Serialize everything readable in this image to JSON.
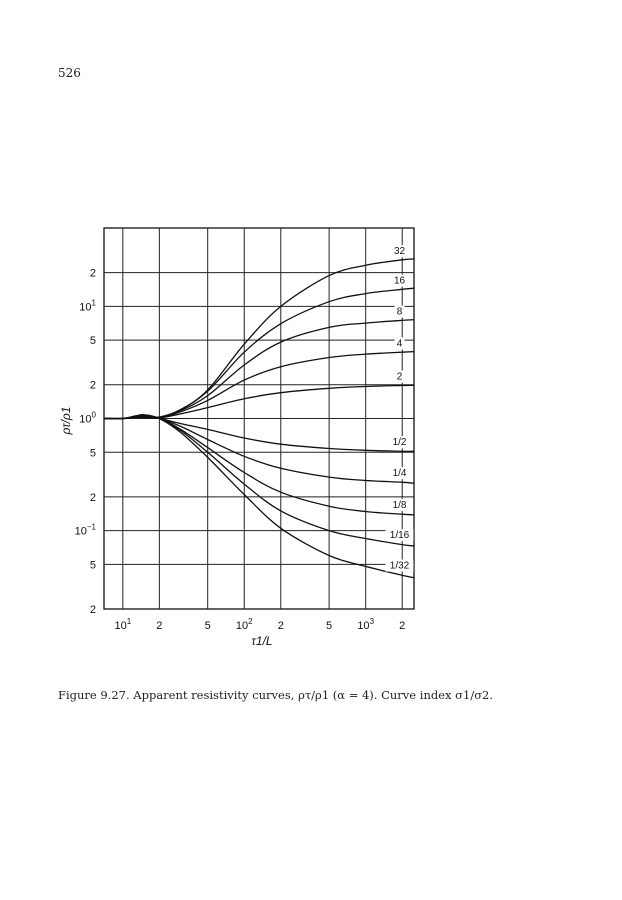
{
  "page": {
    "number": "526"
  },
  "figure": {
    "caption": "Figure 9.27. Apparent resistivity curves, ρτ/ρ1 (α = 4). Curve index σ1/σ2."
  },
  "chart_data": {
    "type": "line",
    "xscale": "log",
    "yscale": "log",
    "xlim": [
      7,
      2500
    ],
    "ylim": [
      0.02,
      50
    ],
    "xlabel": "τ1/L",
    "ylabel": "ρτ/ρ1",
    "x_ticks": [
      {
        "value": 10,
        "label": "10",
        "sup": "1"
      },
      {
        "value": 20,
        "label": "2",
        "sup": ""
      },
      {
        "value": 50,
        "label": "5",
        "sup": ""
      },
      {
        "value": 100,
        "label": "10",
        "sup": "2"
      },
      {
        "value": 200,
        "label": "2",
        "sup": ""
      },
      {
        "value": 500,
        "label": "5",
        "sup": ""
      },
      {
        "value": 1000,
        "label": "10",
        "sup": "3"
      },
      {
        "value": 2000,
        "label": "2",
        "sup": ""
      }
    ],
    "y_ticks": [
      {
        "value": 0.02,
        "label": "2",
        "sup": ""
      },
      {
        "value": 0.05,
        "label": "5",
        "sup": ""
      },
      {
        "value": 0.1,
        "label": "10",
        "sup": "−1"
      },
      {
        "value": 0.2,
        "label": "2",
        "sup": ""
      },
      {
        "value": 0.5,
        "label": "5",
        "sup": ""
      },
      {
        "value": 1,
        "label": "10",
        "sup": "0"
      },
      {
        "value": 2,
        "label": "2",
        "sup": ""
      },
      {
        "value": 5,
        "label": "5",
        "sup": ""
      },
      {
        "value": 10,
        "label": "10",
        "sup": "1"
      },
      {
        "value": 20,
        "label": "2",
        "sup": ""
      }
    ],
    "grid": true,
    "x": [
      7,
      10,
      13,
      15,
      20,
      30,
      50,
      100,
      200,
      500,
      1000,
      2000,
      2500
    ],
    "series": [
      {
        "label": "32",
        "values": [
          1.0,
          1.0,
          1.05,
          1.06,
          1.03,
          1.2,
          1.8,
          4.6,
          10.0,
          18.8,
          23.3,
          26.0,
          26.5
        ]
      },
      {
        "label": "16",
        "values": [
          1.0,
          1.0,
          1.05,
          1.06,
          1.03,
          1.2,
          1.75,
          3.9,
          7.0,
          11.0,
          13.0,
          14.2,
          14.5
        ]
      },
      {
        "label": "8",
        "values": [
          1.0,
          1.0,
          1.04,
          1.05,
          1.03,
          1.18,
          1.6,
          3.0,
          4.8,
          6.5,
          7.1,
          7.5,
          7.6
        ]
      },
      {
        "label": "4",
        "values": [
          1.0,
          1.0,
          1.03,
          1.04,
          1.02,
          1.15,
          1.45,
          2.2,
          2.9,
          3.5,
          3.75,
          3.9,
          3.95
        ]
      },
      {
        "label": "2",
        "values": [
          1.0,
          1.0,
          1.02,
          1.02,
          1.01,
          1.1,
          1.25,
          1.5,
          1.7,
          1.86,
          1.93,
          1.97,
          1.98
        ]
      },
      {
        "label": "1/2",
        "values": [
          1.0,
          1.0,
          1.02,
          1.02,
          1.0,
          0.9,
          0.8,
          0.67,
          0.59,
          0.54,
          0.52,
          0.51,
          0.51
        ]
      },
      {
        "label": "1/4",
        "values": [
          1.0,
          1.0,
          1.03,
          1.04,
          1.0,
          0.85,
          0.65,
          0.46,
          0.36,
          0.3,
          0.28,
          0.27,
          0.265
        ]
      },
      {
        "label": "1/8",
        "values": [
          1.0,
          1.0,
          1.04,
          1.06,
          1.0,
          0.8,
          0.55,
          0.33,
          0.22,
          0.165,
          0.148,
          0.14,
          0.138
        ]
      },
      {
        "label": "1/16",
        "values": [
          1.0,
          1.0,
          1.05,
          1.07,
          1.0,
          0.78,
          0.5,
          0.26,
          0.15,
          0.1,
          0.085,
          0.075,
          0.073
        ]
      },
      {
        "label": "1/32",
        "values": [
          1.0,
          1.0,
          1.06,
          1.08,
          1.0,
          0.75,
          0.45,
          0.21,
          0.105,
          0.06,
          0.048,
          0.04,
          0.038
        ]
      }
    ]
  }
}
